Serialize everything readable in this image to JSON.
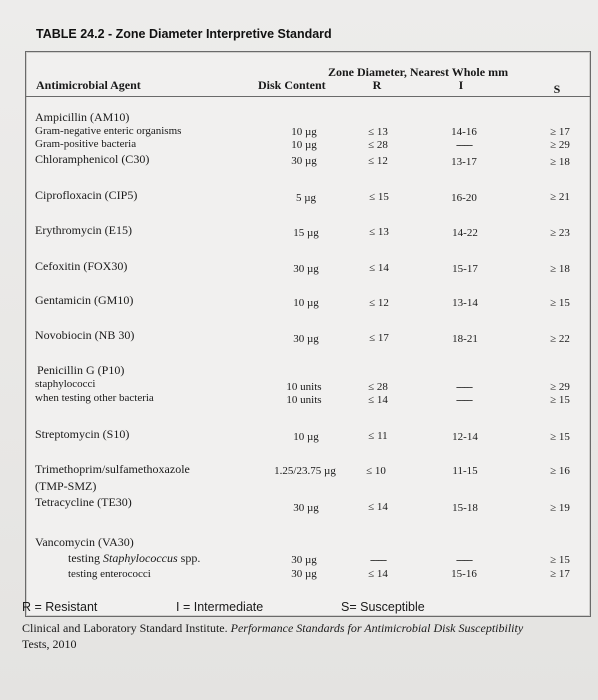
{
  "title": "TABLE 24.2 - Zone Diameter Interpretive Standard",
  "header": {
    "agent": "Antimicrobial Agent",
    "disk": "Disk Content",
    "zone": "Zone Diameter, Nearest Whole mm",
    "r": "R",
    "i": "I",
    "s": "S"
  },
  "rows": [
    {
      "agent": "Ampicillin (AM10)"
    },
    {
      "agent": "Gram-negative enteric organisms",
      "disk": "10 µg",
      "r": "≤ 13",
      "i": "14-16",
      "s": "≥ 17"
    },
    {
      "agent": "Gram-positive bacteria",
      "disk": "10 µg",
      "r": "≤ 28",
      "i": "------",
      "s": "≥ 29"
    },
    {
      "agent": "Chloramphenicol (C30)",
      "disk": "30 µg",
      "r": "≤ 12",
      "i": "13-17",
      "s": "≥ 18"
    },
    {
      "agent": "Ciprofloxacin (CIP5)",
      "disk": "5 µg",
      "r": "≤ 15",
      "i": "16-20",
      "s": "≥ 21"
    },
    {
      "agent": "Erythromycin (E15)",
      "disk": "15 µg",
      "r": "≤ 13",
      "i": "14-22",
      "s": "≥ 23"
    },
    {
      "agent": "Cefoxitin (FOX30)",
      "disk": "30 µg",
      "r": "≤ 14",
      "i": "15-17",
      "s": "≥ 18"
    },
    {
      "agent": "Gentamicin (GM10)",
      "disk": "10 µg",
      "r": "≤ 12",
      "i": "13-14",
      "s": "≥ 15"
    },
    {
      "agent": "Novobiocin (NB 30)",
      "disk": "30 µg",
      "r": "≤ 17",
      "i": "18-21",
      "s": "≥ 22"
    },
    {
      "agent": "Penicillin G (P10)"
    },
    {
      "agent": "staphylococci",
      "disk": "10 units",
      "r": "≤ 28",
      "i": "------",
      "s": "≥ 29"
    },
    {
      "agent": "when testing other bacteria",
      "disk": "10 units",
      "r": "≤ 14",
      "i": "------",
      "s": "≥ 15"
    },
    {
      "agent": "Streptomycin (S10)",
      "disk": "10 µg",
      "r": "≤ 11",
      "i": "12-14",
      "s": "≥ 15"
    },
    {
      "agent": "Trimethoprim/sulfamethoxazole",
      "disk": "1.25/23.75 µg",
      "r": "≤ 10",
      "i": "11-15",
      "s": "≥ 16"
    },
    {
      "agent": "(TMP-SMZ)"
    },
    {
      "agent": "Tetracycline (TE30)",
      "disk": "30 µg",
      "r": "≤ 14",
      "i": "15-18",
      "s": "≥ 19"
    },
    {
      "agent": "Vancomycin (VA30)"
    },
    {
      "agent_prefix": "testing ",
      "agent_italic": "Staphylococcus",
      "agent_suffix": " spp.",
      "disk": "30 µg",
      "r": "------",
      "i": "------",
      "s": "≥ 15"
    },
    {
      "agent": "testing enterococci",
      "disk": "30 µg",
      "r": "≤ 14",
      "i": "15-16",
      "s": "≥ 17"
    }
  ],
  "legend": {
    "r": "R = Resistant",
    "i": "I = Intermediate",
    "s": "S= Susceptible"
  },
  "source": {
    "prefix": "Clinical and Laboratory Standard Institute. ",
    "italic": "Performance Standards for Antimicrobial Disk Susceptibility",
    "suffix": "Tests, 2010"
  }
}
